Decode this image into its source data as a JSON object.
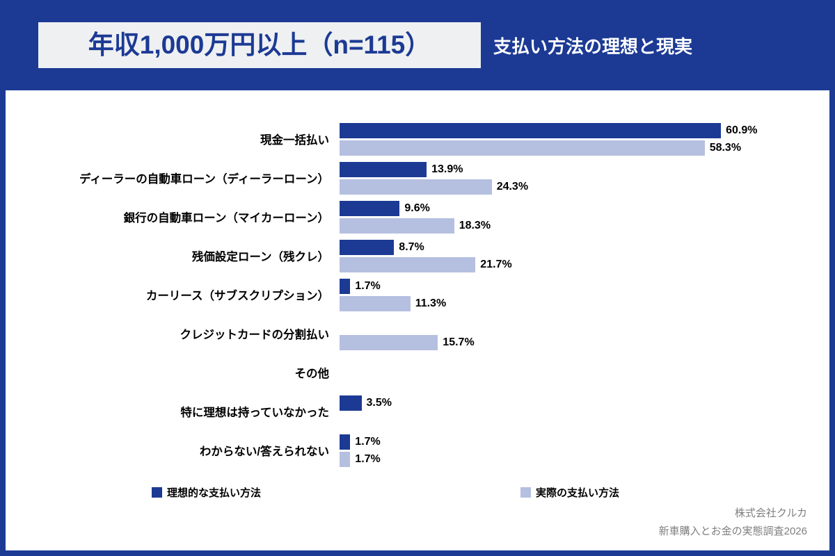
{
  "header": {
    "badge": "年収1,000万円以上（n=115）",
    "title": "支払い方法の理想と現実"
  },
  "chart_data": {
    "type": "bar",
    "orientation": "horizontal",
    "title": "支払い方法の理想と現実",
    "subtitle": "年収1,000万円以上（n=115）",
    "value_suffix": "%",
    "xlim": [
      0,
      70
    ],
    "grid": false,
    "legend_position": "bottom",
    "categories": [
      "現金一括払い",
      "ディーラーの自動車ローン（ディーラーローン）",
      "銀行の自動車ローン（マイカーローン）",
      "残価設定ローン（残クレ）",
      "カーリース（サブスクリプション）",
      "クレジットカードの分割払い",
      "その他",
      "特に理想は持っていなかった",
      "わからない/答えられない"
    ],
    "series": [
      {
        "name": "理想的な支払い方法",
        "color": "#1c3a94",
        "values": [
          60.9,
          13.9,
          9.6,
          8.7,
          1.7,
          0,
          0,
          3.5,
          1.7
        ]
      },
      {
        "name": "実際の支払い方法",
        "color": "#b5bfe0",
        "values": [
          58.3,
          24.3,
          18.3,
          21.7,
          11.3,
          15.7,
          0,
          0,
          1.7
        ]
      }
    ]
  },
  "footer": {
    "company": "株式会社クルカ",
    "survey": "新車購入とお金の実態調査2026"
  }
}
